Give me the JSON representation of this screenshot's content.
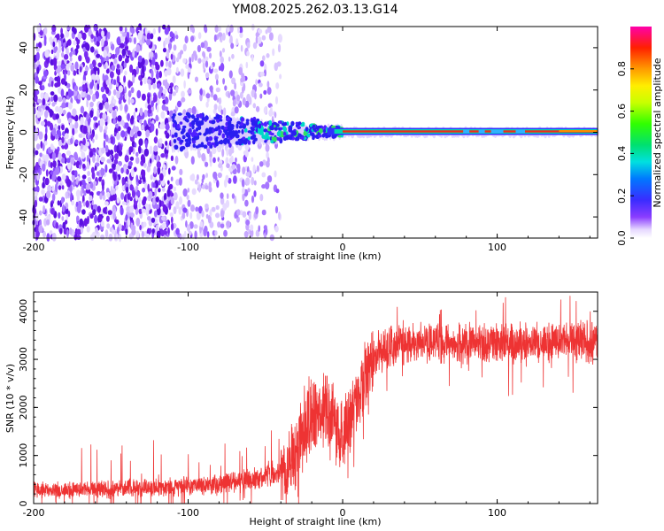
{
  "title": "YM08.2025.262.03.13.G14",
  "chart_data": [
    {
      "type": "heatmap",
      "title": "YM08.2025.262.03.13.G14",
      "xlabel": "Height of straight line (km)",
      "ylabel": "Frequency (Hz)",
      "xlim": [
        -200,
        165
      ],
      "ylim": [
        -50,
        50
      ],
      "x_ticks": [
        -200,
        -100,
        0,
        100
      ],
      "y_ticks": [
        -40,
        -20,
        0,
        20,
        40
      ],
      "colorbar": {
        "label": "Normalized spectral amplitude",
        "range": [
          0.0,
          1.0
        ],
        "ticks": [
          0.0,
          0.2,
          0.4,
          0.6,
          0.8
        ]
      },
      "features": {
        "noise_region_km": [
          -200,
          -45
        ],
        "sparse_noise_region_km": [
          -110,
          -45
        ],
        "signal_onset_km": -110,
        "signal_frequency_hz": 0,
        "strong_signal_from_km": 0
      }
    },
    {
      "type": "line",
      "xlabel": "Height of straight line (km)",
      "ylabel": "SNR (10 * v/v)",
      "xlim": [
        -200,
        165
      ],
      "ylim": [
        0,
        4400
      ],
      "x_ticks": [
        -200,
        -100,
        0,
        100
      ],
      "y_ticks": [
        0,
        1000,
        2000,
        3000,
        4000
      ],
      "series": [
        {
          "name": "SNR",
          "color": "#ee3333",
          "trend_x": [
            -200,
            -150,
            -100,
            -80,
            -60,
            -45,
            -35,
            -30,
            -20,
            -10,
            0,
            10,
            15,
            20,
            25,
            40,
            60,
            100,
            165
          ],
          "trend_y": [
            280,
            300,
            360,
            420,
            500,
            600,
            700,
            1100,
            1800,
            2000,
            1300,
            2200,
            2700,
            3000,
            3200,
            3350,
            3350,
            3350,
            3400
          ]
        }
      ]
    }
  ]
}
